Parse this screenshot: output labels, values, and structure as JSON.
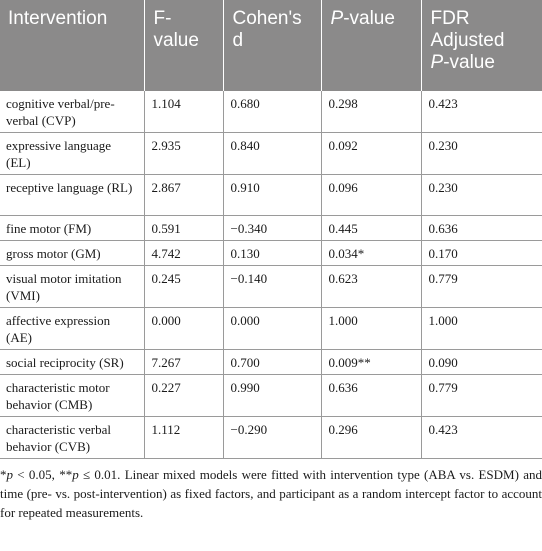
{
  "table": {
    "headers": {
      "intervention": "Intervention",
      "f_value": "F-value",
      "cohens_d": "Cohen's d",
      "p_value_italic": "P",
      "p_value_rest": "-value",
      "fdr_line1": "FDR Adjusted",
      "fdr_p_italic": "P",
      "fdr_p_rest": "-value"
    },
    "rows": [
      {
        "intervention": "cognitive verbal/pre-verbal (CVP)",
        "f": "1.104",
        "d": "0.680",
        "p": "0.298",
        "fdr": "0.423"
      },
      {
        "intervention": "expressive language (EL)",
        "f": "2.935",
        "d": "0.840",
        "p": "0.092",
        "fdr": "0.230"
      },
      {
        "intervention": "receptive language (RL)",
        "f": "2.867",
        "d": "0.910",
        "p": "0.096",
        "fdr": "0.230"
      },
      {
        "intervention": "fine motor (FM)",
        "f": "0.591",
        "d": "−0.340",
        "p": "0.445",
        "fdr": "0.636"
      },
      {
        "intervention": "gross motor (GM)",
        "f": "4.742",
        "d": "0.130",
        "p": "0.034*",
        "fdr": "0.170"
      },
      {
        "intervention": "visual motor imitation (VMI)",
        "f": "0.245",
        "d": "−0.140",
        "p": "0.623",
        "fdr": "0.779"
      },
      {
        "intervention": "affective expression (AE)",
        "f": "0.000",
        "d": "0.000",
        "p": "1.000",
        "fdr": "1.000"
      },
      {
        "intervention": "social reciprocity (SR)",
        "f": "7.267",
        "d": "0.700",
        "p": "0.009**",
        "fdr": "0.090"
      },
      {
        "intervention": "characteristic motor behavior (CMB)",
        "f": "0.227",
        "d": "0.990",
        "p": "0.636",
        "fdr": "0.779"
      },
      {
        "intervention": "characteristic verbal behavior (CVB)",
        "f": "1.112",
        "d": "−0.290",
        "p": "0.296",
        "fdr": "0.423"
      }
    ]
  },
  "footnote": {
    "star1": "*",
    "p1": "p",
    "part1": " < 0.05, **",
    "p2": "p",
    "part2": " ≤ 0.01. Linear mixed models were fitted with intervention type (ABA vs. ESDM) and time (pre- vs. post-intervention) as fixed factors, and participant as a random intercept factor to account for repeated measurements."
  },
  "colors": {
    "header_bg": "#8b8a8a",
    "header_text": "#ffffff",
    "rule": "#9a9a9a"
  }
}
